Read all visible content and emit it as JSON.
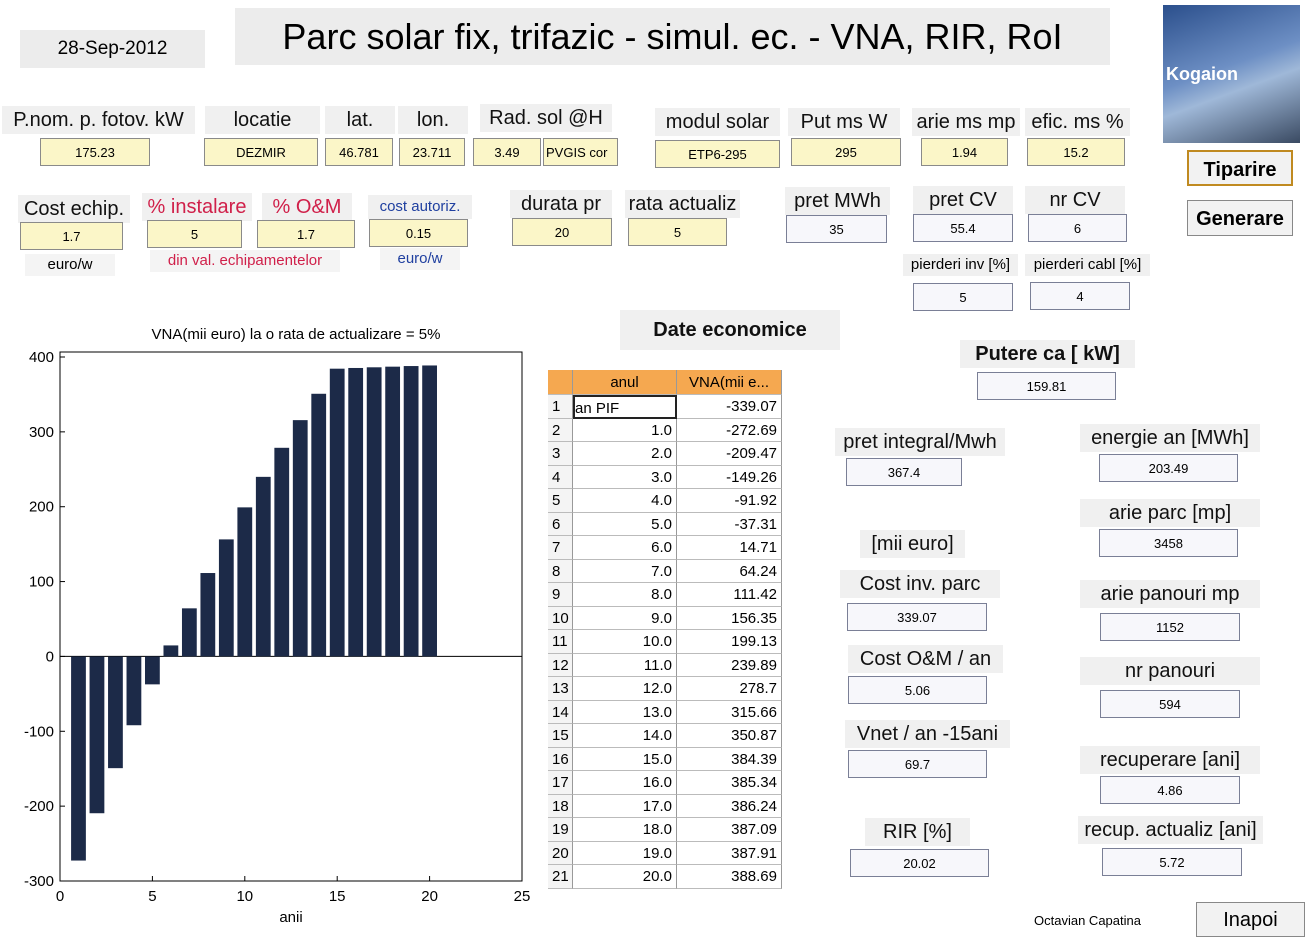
{
  "header": {
    "date": "28-Sep-2012",
    "title": "Parc solar fix, trifazic - simul. ec. - VNA, RIR, RoI"
  },
  "logo": "Kogaion",
  "buttons": {
    "print": "Tiparire",
    "generate": "Generare",
    "back": "Inapoi"
  },
  "inputs": [
    {
      "label": "P.nom. p. fotov. kW",
      "value": 175.23
    },
    {
      "label": "locatie",
      "value": "DEZMIR"
    },
    {
      "label": "lat.",
      "value": 46.781
    },
    {
      "label": "lon.",
      "value": 23.711
    },
    {
      "label": "Rad. sol @H",
      "value": 3.49,
      "source": "PVGIS cor"
    },
    {
      "label": "modul solar",
      "value": "ETP6-295"
    },
    {
      "label": "Put ms W",
      "value": 295
    },
    {
      "label": "arie ms mp",
      "value": 1.94
    },
    {
      "label": "efic. ms %",
      "value": 15.2
    },
    {
      "label": "Cost echip.",
      "value": 1.7,
      "unit": "euro/w"
    },
    {
      "label": "% instalare",
      "value": 5
    },
    {
      "label": "% O&M",
      "value": 1.7,
      "note": "din val. echipamentelor"
    },
    {
      "label": "cost autoriz.",
      "value": 0.15,
      "unit": "euro/w"
    },
    {
      "label": "durata pr",
      "value": 20
    },
    {
      "label": "rata actualiz",
      "value": 5
    },
    {
      "label": "pret MWh",
      "value": 35
    },
    {
      "label": "pret CV",
      "value": 55.4
    },
    {
      "label": "nr CV",
      "value": 6
    },
    {
      "label": "pierderi inv [%]",
      "value": 5
    },
    {
      "label": "pierderi cabl [%]",
      "value": 4
    }
  ],
  "outputs_unit": "[mii euro]",
  "outputs": [
    {
      "label": "Putere  ca  [ kW]",
      "value": 159.81
    },
    {
      "label": "pret integral/Mwh",
      "value": 367.4
    },
    {
      "label": "Cost inv.  parc",
      "value": 339.07
    },
    {
      "label": "Cost O&M / an",
      "value": 5.06
    },
    {
      "label": "Vnet / an -15ani",
      "value": 69.7
    },
    {
      "label": "RIR [%]",
      "value": 20.02
    },
    {
      "label": "energie an [MWh]",
      "value": 203.49
    },
    {
      "label": "arie parc [mp]",
      "value": 3458
    },
    {
      "label": "arie  panouri mp",
      "value": 1152
    },
    {
      "label": "nr panouri",
      "value": 594
    },
    {
      "label": "recuperare [ani]",
      "value": 4.86
    },
    {
      "label": "recup. actualiz [ani]",
      "value": 5.72
    }
  ],
  "table_title": "Date economice",
  "table": {
    "columns": [
      "anul",
      "VNA(mii e..."
    ],
    "rows": [
      [
        1,
        "an PIF",
        -339.07
      ],
      [
        2,
        "1.0",
        -272.69
      ],
      [
        3,
        "2.0",
        -209.47
      ],
      [
        4,
        "3.0",
        -149.26
      ],
      [
        5,
        "4.0",
        -91.92
      ],
      [
        6,
        "5.0",
        -37.31
      ],
      [
        7,
        "6.0",
        14.71
      ],
      [
        8,
        "7.0",
        64.24
      ],
      [
        9,
        "8.0",
        111.42
      ],
      [
        10,
        "9.0",
        156.35
      ],
      [
        11,
        "10.0",
        199.13
      ],
      [
        12,
        "11.0",
        239.89
      ],
      [
        13,
        "12.0",
        278.7
      ],
      [
        14,
        "13.0",
        315.66
      ],
      [
        15,
        "14.0",
        350.87
      ],
      [
        16,
        "15.0",
        384.39
      ],
      [
        17,
        "16.0",
        385.34
      ],
      [
        18,
        "17.0",
        386.24
      ],
      [
        19,
        "18.0",
        387.09
      ],
      [
        20,
        "19.0",
        387.91
      ],
      [
        21,
        "20.0",
        388.69
      ]
    ]
  },
  "author": "Octavian Capatina",
  "chart_data": {
    "type": "bar",
    "title": "VNA(mii euro) la o rata de actualizare = 5%",
    "x_label": "anii",
    "x": [
      1,
      2,
      3,
      4,
      5,
      6,
      7,
      8,
      9,
      10,
      11,
      12,
      13,
      14,
      15,
      16,
      17,
      18,
      19,
      20
    ],
    "values": [
      -272.69,
      -209.47,
      -149.26,
      -91.92,
      -37.31,
      14.71,
      64.24,
      111.42,
      156.35,
      199.13,
      239.89,
      278.7,
      315.66,
      350.87,
      384.39,
      385.34,
      386.24,
      387.09,
      387.91,
      388.69
    ],
    "color": "#1c2a48",
    "xlim": [
      0,
      25
    ],
    "ylim": [
      -300,
      400
    ],
    "xticks": [
      0,
      5,
      10,
      15,
      20,
      25
    ],
    "yticks": [
      -300,
      -200,
      -100,
      0,
      100,
      200,
      300,
      400
    ]
  }
}
